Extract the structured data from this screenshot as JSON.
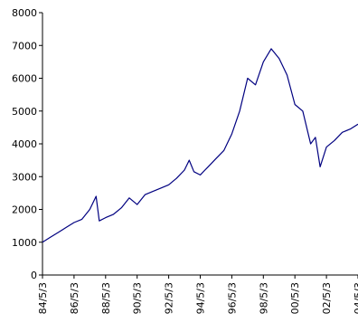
{
  "chart_data": {
    "type": "line",
    "title": "",
    "xlabel": "",
    "ylabel": "",
    "ylim": [
      0,
      8000
    ],
    "yticks": [
      0,
      1000,
      2000,
      3000,
      4000,
      5000,
      6000,
      7000,
      8000
    ],
    "xticks": [
      "84/5/3",
      "86/5/3",
      "88/5/3",
      "90/5/3",
      "92/5/3",
      "94/5/3",
      "96/5/3",
      "98/5/3",
      "00/5/3",
      "02/5/3",
      "04/5/3"
    ],
    "grid": false,
    "legend": "none",
    "colors": {
      "line": "#000080",
      "axis": "#000000",
      "background": "#ffffff"
    },
    "series": [
      {
        "x": [
          0,
          0.5,
          1.0,
          1.5,
          2.0,
          2.5,
          3.0,
          3.4,
          3.6,
          4.0,
          4.5,
          5.0,
          5.5,
          6.0,
          6.5,
          7.0,
          7.5,
          8.0,
          8.5,
          9.0,
          9.3,
          9.6,
          10.0,
          10.3,
          10.5,
          11.0,
          11.5,
          12.0,
          12.5,
          13.0,
          13.5,
          14.0,
          14.5,
          15.0,
          15.5,
          16.0,
          16.5,
          17.0,
          17.3,
          17.6,
          18.0,
          18.5,
          19.0,
          19.5,
          20.0
        ],
        "values": [
          1000,
          1150,
          1300,
          1450,
          1600,
          1700,
          2000,
          2400,
          1650,
          1750,
          1850,
          2050,
          2350,
          2150,
          2450,
          2550,
          2650,
          2750,
          2950,
          3200,
          3500,
          3150,
          3050,
          3200,
          3300,
          3550,
          3800,
          4300,
          5000,
          6000,
          5800,
          6500,
          6900,
          6600,
          6100,
          5200,
          5000,
          4000,
          4200,
          3300,
          3900,
          4100,
          4350,
          4450,
          4600
        ]
      }
    ]
  }
}
